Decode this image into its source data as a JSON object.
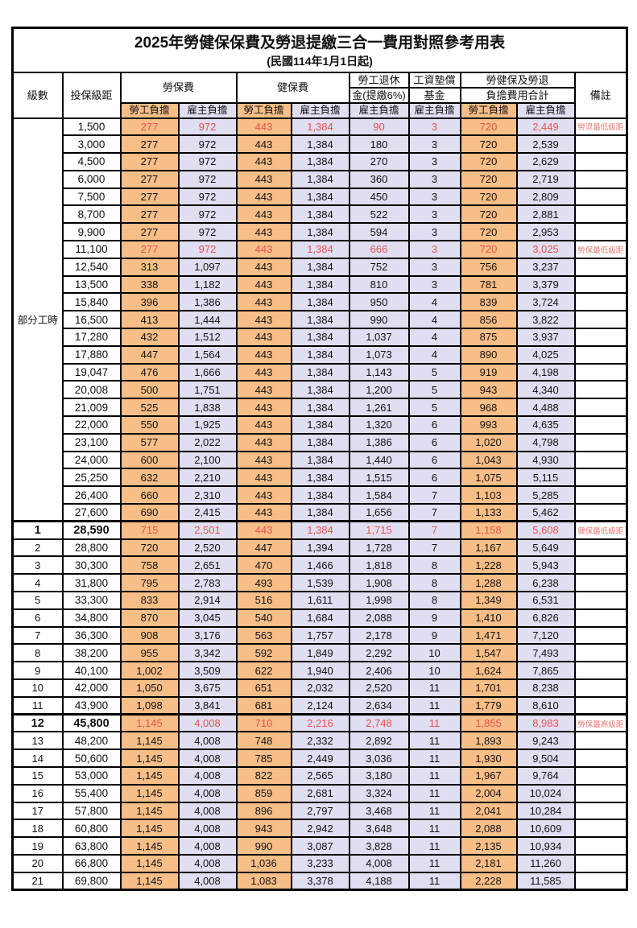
{
  "title": "2025年勞健保保費及勞退提繳三合一費用對照參考用表",
  "subtitle": "(民國114年1月1日起)",
  "header": {
    "level": "級數",
    "bracket": "投保級距",
    "labor_insurance": "勞保費",
    "health_insurance": "健保費",
    "pension_line1": "勞工退休",
    "pension_line2": "金(提繳6%)",
    "wage_fund_line1": "工資墊償",
    "wage_fund_line2": "基金",
    "total_line1": "勞健保及勞退",
    "total_line2": "負擔費用合計",
    "note": "備註",
    "employee_label": "勞工負擔",
    "employer_label": "雇主負擔"
  },
  "part_time_label": "部分工時",
  "column_fill_pattern": [
    "employee",
    "employer",
    "employee",
    "employer",
    "employer",
    "employer",
    "employee",
    "employer"
  ],
  "colors": {
    "employee_bg": "#F7BE88",
    "employer_bg": "#E0DEF1",
    "highlight_value_text": "#E8534F",
    "note_text": "#E97A74",
    "border": "#000000"
  },
  "rows": [
    {
      "level": "",
      "bracket": "1,500",
      "values": [
        "277",
        "972",
        "443",
        "1,384",
        "90",
        "3",
        "720",
        "2,449"
      ],
      "note": "勞退最低級距",
      "red": true,
      "bold": false
    },
    {
      "level": "",
      "bracket": "3,000",
      "values": [
        "277",
        "972",
        "443",
        "1,384",
        "180",
        "3",
        "720",
        "2,539"
      ],
      "note": "",
      "red": false,
      "bold": false
    },
    {
      "level": "",
      "bracket": "4,500",
      "values": [
        "277",
        "972",
        "443",
        "1,384",
        "270",
        "3",
        "720",
        "2,629"
      ],
      "note": "",
      "red": false,
      "bold": false
    },
    {
      "level": "",
      "bracket": "6,000",
      "values": [
        "277",
        "972",
        "443",
        "1,384",
        "360",
        "3",
        "720",
        "2,719"
      ],
      "note": "",
      "red": false,
      "bold": false
    },
    {
      "level": "",
      "bracket": "7,500",
      "values": [
        "277",
        "972",
        "443",
        "1,384",
        "450",
        "3",
        "720",
        "2,809"
      ],
      "note": "",
      "red": false,
      "bold": false
    },
    {
      "level": "",
      "bracket": "8,700",
      "values": [
        "277",
        "972",
        "443",
        "1,384",
        "522",
        "3",
        "720",
        "2,881"
      ],
      "note": "",
      "red": false,
      "bold": false
    },
    {
      "level": "",
      "bracket": "9,900",
      "values": [
        "277",
        "972",
        "443",
        "1,384",
        "594",
        "3",
        "720",
        "2,953"
      ],
      "note": "",
      "red": false,
      "bold": false
    },
    {
      "level": "",
      "bracket": "11,100",
      "values": [
        "277",
        "972",
        "443",
        "1,384",
        "666",
        "3",
        "720",
        "3,025"
      ],
      "note": "勞保最低級距",
      "red": true,
      "bold": false
    },
    {
      "level": "",
      "bracket": "12,540",
      "values": [
        "313",
        "1,097",
        "443",
        "1,384",
        "752",
        "3",
        "756",
        "3,237"
      ],
      "note": "",
      "red": false,
      "bold": false
    },
    {
      "level": "",
      "bracket": "13,500",
      "values": [
        "338",
        "1,182",
        "443",
        "1,384",
        "810",
        "3",
        "781",
        "3,379"
      ],
      "note": "",
      "red": false,
      "bold": false
    },
    {
      "level": "",
      "bracket": "15,840",
      "values": [
        "396",
        "1,386",
        "443",
        "1,384",
        "950",
        "4",
        "839",
        "3,724"
      ],
      "note": "",
      "red": false,
      "bold": false
    },
    {
      "level": "",
      "bracket": "16,500",
      "values": [
        "413",
        "1,444",
        "443",
        "1,384",
        "990",
        "4",
        "856",
        "3,822"
      ],
      "note": "",
      "red": false,
      "bold": false
    },
    {
      "level": "",
      "bracket": "17,280",
      "values": [
        "432",
        "1,512",
        "443",
        "1,384",
        "1,037",
        "4",
        "875",
        "3,937"
      ],
      "note": "",
      "red": false,
      "bold": false
    },
    {
      "level": "",
      "bracket": "17,880",
      "values": [
        "447",
        "1,564",
        "443",
        "1,384",
        "1,073",
        "4",
        "890",
        "4,025"
      ],
      "note": "",
      "red": false,
      "bold": false
    },
    {
      "level": "",
      "bracket": "19,047",
      "values": [
        "476",
        "1,666",
        "443",
        "1,384",
        "1,143",
        "5",
        "919",
        "4,198"
      ],
      "note": "",
      "red": false,
      "bold": false
    },
    {
      "level": "",
      "bracket": "20,008",
      "values": [
        "500",
        "1,751",
        "443",
        "1,384",
        "1,200",
        "5",
        "943",
        "4,340"
      ],
      "note": "",
      "red": false,
      "bold": false
    },
    {
      "level": "",
      "bracket": "21,009",
      "values": [
        "525",
        "1,838",
        "443",
        "1,384",
        "1,261",
        "5",
        "968",
        "4,488"
      ],
      "note": "",
      "red": false,
      "bold": false
    },
    {
      "level": "",
      "bracket": "22,000",
      "values": [
        "550",
        "1,925",
        "443",
        "1,384",
        "1,320",
        "6",
        "993",
        "4,635"
      ],
      "note": "",
      "red": false,
      "bold": false
    },
    {
      "level": "",
      "bracket": "23,100",
      "values": [
        "577",
        "2,022",
        "443",
        "1,384",
        "1,386",
        "6",
        "1,020",
        "4,798"
      ],
      "note": "",
      "red": false,
      "bold": false
    },
    {
      "level": "",
      "bracket": "24,000",
      "values": [
        "600",
        "2,100",
        "443",
        "1,384",
        "1,440",
        "6",
        "1,043",
        "4,930"
      ],
      "note": "",
      "red": false,
      "bold": false
    },
    {
      "level": "",
      "bracket": "25,250",
      "values": [
        "632",
        "2,210",
        "443",
        "1,384",
        "1,515",
        "6",
        "1,075",
        "5,115"
      ],
      "note": "",
      "red": false,
      "bold": false
    },
    {
      "level": "",
      "bracket": "26,400",
      "values": [
        "660",
        "2,310",
        "443",
        "1,384",
        "1,584",
        "7",
        "1,103",
        "5,285"
      ],
      "note": "",
      "red": false,
      "bold": false
    },
    {
      "level": "",
      "bracket": "27,600",
      "values": [
        "690",
        "2,415",
        "443",
        "1,384",
        "1,656",
        "7",
        "1,133",
        "5,462"
      ],
      "note": "",
      "red": false,
      "bold": false
    },
    {
      "level": "1",
      "bracket": "28,590",
      "values": [
        "715",
        "2,501",
        "443",
        "1,384",
        "1,715",
        "7",
        "1,158",
        "5,608"
      ],
      "note": "健保最低級距",
      "red": true,
      "bold": true
    },
    {
      "level": "2",
      "bracket": "28,800",
      "values": [
        "720",
        "2,520",
        "447",
        "1,394",
        "1,728",
        "7",
        "1,167",
        "5,649"
      ],
      "note": "",
      "red": false,
      "bold": false
    },
    {
      "level": "3",
      "bracket": "30,300",
      "values": [
        "758",
        "2,651",
        "470",
        "1,466",
        "1,818",
        "8",
        "1,228",
        "5,943"
      ],
      "note": "",
      "red": false,
      "bold": false
    },
    {
      "level": "4",
      "bracket": "31,800",
      "values": [
        "795",
        "2,783",
        "493",
        "1,539",
        "1,908",
        "8",
        "1,288",
        "6,238"
      ],
      "note": "",
      "red": false,
      "bold": false
    },
    {
      "level": "5",
      "bracket": "33,300",
      "values": [
        "833",
        "2,914",
        "516",
        "1,611",
        "1,998",
        "8",
        "1,349",
        "6,531"
      ],
      "note": "",
      "red": false,
      "bold": false
    },
    {
      "level": "6",
      "bracket": "34,800",
      "values": [
        "870",
        "3,045",
        "540",
        "1,684",
        "2,088",
        "9",
        "1,410",
        "6,826"
      ],
      "note": "",
      "red": false,
      "bold": false
    },
    {
      "level": "7",
      "bracket": "36,300",
      "values": [
        "908",
        "3,176",
        "563",
        "1,757",
        "2,178",
        "9",
        "1,471",
        "7,120"
      ],
      "note": "",
      "red": false,
      "bold": false
    },
    {
      "level": "8",
      "bracket": "38,200",
      "values": [
        "955",
        "3,342",
        "592",
        "1,849",
        "2,292",
        "10",
        "1,547",
        "7,493"
      ],
      "note": "",
      "red": false,
      "bold": false
    },
    {
      "level": "9",
      "bracket": "40,100",
      "values": [
        "1,002",
        "3,509",
        "622",
        "1,940",
        "2,406",
        "10",
        "1,624",
        "7,865"
      ],
      "note": "",
      "red": false,
      "bold": false
    },
    {
      "level": "10",
      "bracket": "42,000",
      "values": [
        "1,050",
        "3,675",
        "651",
        "2,032",
        "2,520",
        "11",
        "1,701",
        "8,238"
      ],
      "note": "",
      "red": false,
      "bold": false
    },
    {
      "level": "11",
      "bracket": "43,900",
      "values": [
        "1,098",
        "3,841",
        "681",
        "2,124",
        "2,634",
        "11",
        "1,779",
        "8,610"
      ],
      "note": "",
      "red": false,
      "bold": false
    },
    {
      "level": "12",
      "bracket": "45,800",
      "values": [
        "1,145",
        "4,008",
        "710",
        "2,216",
        "2,748",
        "11",
        "1,855",
        "8,983"
      ],
      "note": "勞保最高級距",
      "red": true,
      "bold": true
    },
    {
      "level": "13",
      "bracket": "48,200",
      "values": [
        "1,145",
        "4,008",
        "748",
        "2,332",
        "2,892",
        "11",
        "1,893",
        "9,243"
      ],
      "note": "",
      "red": false,
      "bold": false
    },
    {
      "level": "14",
      "bracket": "50,600",
      "values": [
        "1,145",
        "4,008",
        "785",
        "2,449",
        "3,036",
        "11",
        "1,930",
        "9,504"
      ],
      "note": "",
      "red": false,
      "bold": false
    },
    {
      "level": "15",
      "bracket": "53,000",
      "values": [
        "1,145",
        "4,008",
        "822",
        "2,565",
        "3,180",
        "11",
        "1,967",
        "9,764"
      ],
      "note": "",
      "red": false,
      "bold": false
    },
    {
      "level": "16",
      "bracket": "55,400",
      "values": [
        "1,145",
        "4,008",
        "859",
        "2,681",
        "3,324",
        "11",
        "2,004",
        "10,024"
      ],
      "note": "",
      "red": false,
      "bold": false
    },
    {
      "level": "17",
      "bracket": "57,800",
      "values": [
        "1,145",
        "4,008",
        "896",
        "2,797",
        "3,468",
        "11",
        "2,041",
        "10,284"
      ],
      "note": "",
      "red": false,
      "bold": false
    },
    {
      "level": "18",
      "bracket": "60,800",
      "values": [
        "1,145",
        "4,008",
        "943",
        "2,942",
        "3,648",
        "11",
        "2,088",
        "10,609"
      ],
      "note": "",
      "red": false,
      "bold": false
    },
    {
      "level": "19",
      "bracket": "63,800",
      "values": [
        "1,145",
        "4,008",
        "990",
        "3,087",
        "3,828",
        "11",
        "2,135",
        "10,934"
      ],
      "note": "",
      "red": false,
      "bold": false
    },
    {
      "level": "20",
      "bracket": "66,800",
      "values": [
        "1,145",
        "4,008",
        "1,036",
        "3,233",
        "4,008",
        "11",
        "2,181",
        "11,260"
      ],
      "note": "",
      "red": false,
      "bold": false
    },
    {
      "level": "21",
      "bracket": "69,800",
      "values": [
        "1,145",
        "4,008",
        "1,083",
        "3,378",
        "4,188",
        "11",
        "2,228",
        "11,585"
      ],
      "note": "",
      "red": false,
      "bold": false
    }
  ]
}
